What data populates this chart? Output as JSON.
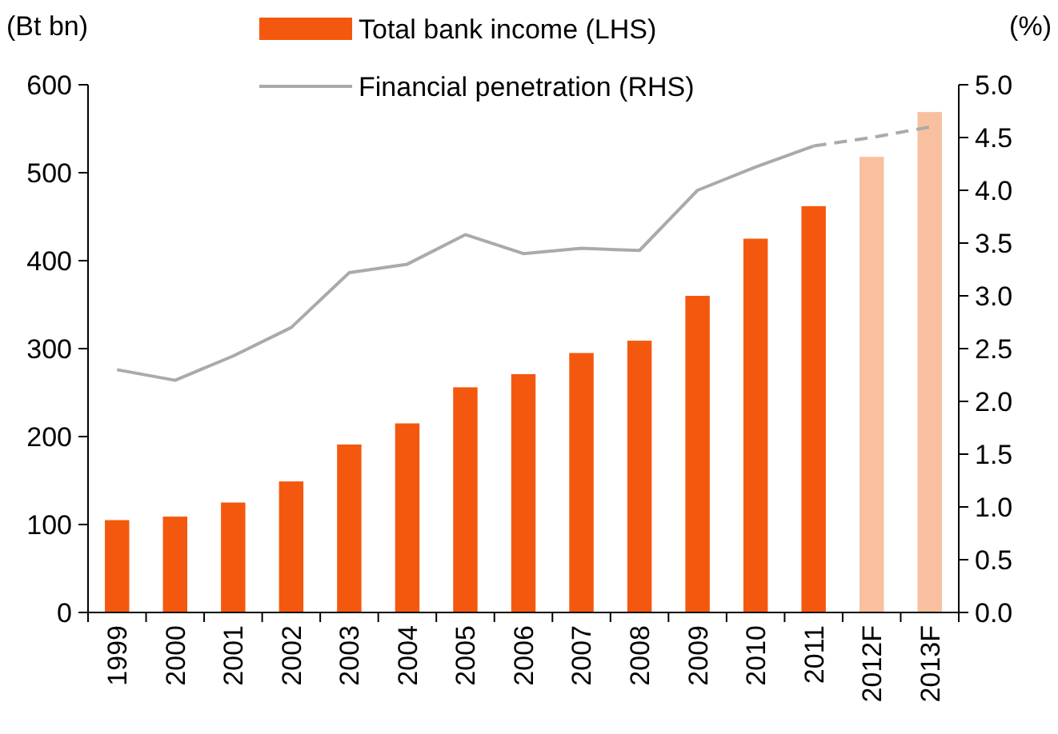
{
  "chart_data": {
    "type": "bar",
    "ylabel": "(Bt bn)",
    "y2label": "(%)",
    "categories": [
      "1999",
      "2000",
      "2001",
      "2002",
      "2003",
      "2004",
      "2005",
      "2006",
      "2007",
      "2008",
      "2009",
      "2010",
      "2011",
      "2012F",
      "2013F"
    ],
    "series": [
      {
        "name": "Total bank income (LHS)",
        "color": "#f4580f",
        "colors": [
          "#f4580f",
          "#f4580f",
          "#f4580f",
          "#f4580f",
          "#f4580f",
          "#f4580f",
          "#f4580f",
          "#f4580f",
          "#f4580f",
          "#f4580f",
          "#f4580f",
          "#f4580f",
          "#f4580f",
          "#f9c0a0",
          "#f9c0a0"
        ],
        "values": [
          105,
          109,
          125,
          149,
          191,
          215,
          256,
          271,
          295,
          309,
          360,
          425,
          462,
          518,
          569
        ]
      },
      {
        "name": "Financial penetration (RHS)",
        "type": "line",
        "axis": "y2",
        "color": "#aaaaaa",
        "line_style": "solid",
        "values": [
          2.3,
          2.2,
          2.43,
          2.7,
          3.22,
          3.3,
          3.58,
          3.4,
          3.45,
          3.43,
          4.0,
          4.22,
          4.42,
          null,
          null
        ]
      },
      {
        "type": "line",
        "axis": "y2",
        "color": "#aaaaaa",
        "line_style": "dashed",
        "values": [
          null,
          null,
          null,
          null,
          null,
          null,
          null,
          null,
          null,
          null,
          null,
          null,
          4.42,
          4.5,
          4.6
        ]
      }
    ],
    "ylim": [
      0,
      600
    ],
    "yticks": [
      0,
      100,
      200,
      300,
      400,
      500,
      600
    ],
    "y2lim": [
      0,
      5
    ],
    "y2ticks": [
      {
        "value": 0,
        "label": "0.0"
      },
      {
        "value": 0.5,
        "label": "0.5"
      },
      {
        "value": 1,
        "label": "1.0"
      },
      {
        "value": 1.5,
        "label": "1.5"
      },
      {
        "value": 2,
        "label": "2.0"
      },
      {
        "value": 2.5,
        "label": "2.5"
      },
      {
        "value": 3,
        "label": "3.0"
      },
      {
        "value": 3.5,
        "label": "3.5"
      },
      {
        "value": 4,
        "label": "4.0"
      },
      {
        "value": 4.5,
        "label": "4.5"
      },
      {
        "value": 5,
        "label": "5.0"
      }
    ],
    "grid": false,
    "legend": "top"
  }
}
